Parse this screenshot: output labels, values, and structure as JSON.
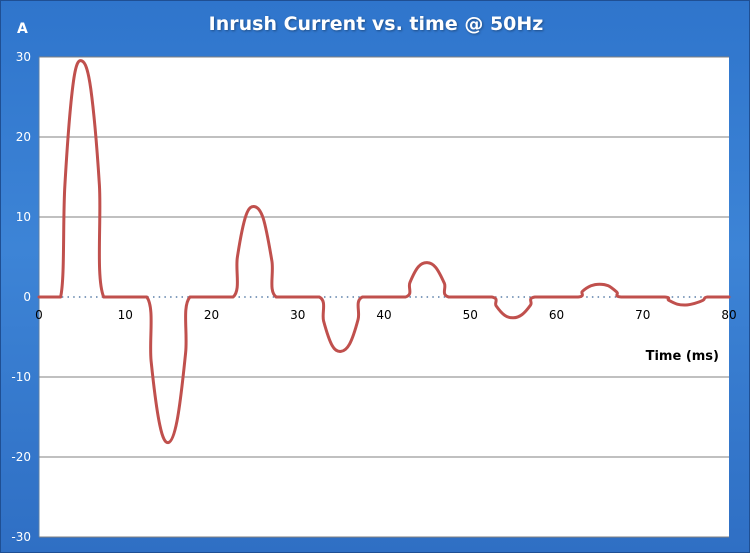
{
  "chart_data": {
    "type": "line",
    "title": "Inrush Current vs. time @ 50Hz",
    "ylabel": "A",
    "xlabel": "Time (ms)",
    "xlim": [
      0,
      80
    ],
    "ylim": [
      -30,
      30
    ],
    "x_ticks": [
      0,
      10,
      20,
      30,
      40,
      50,
      60,
      70,
      80
    ],
    "y_ticks": [
      30,
      20,
      10,
      0,
      -10,
      -20,
      -30
    ],
    "grid": "horizontal",
    "legend": "none",
    "series": [
      {
        "color": "#c0504d",
        "points": [
          [
            0,
            0
          ],
          [
            2.5,
            0
          ],
          [
            3.0,
            14
          ],
          [
            4.0,
            27
          ],
          [
            5.0,
            29.5
          ],
          [
            6.0,
            26
          ],
          [
            7.0,
            14
          ],
          [
            7.5,
            0
          ],
          [
            12.5,
            0
          ],
          [
            13.0,
            -8
          ],
          [
            14.0,
            -16
          ],
          [
            15.0,
            -18.2
          ],
          [
            16.0,
            -15.5
          ],
          [
            17.0,
            -7
          ],
          [
            17.5,
            0
          ],
          [
            22.5,
            0
          ],
          [
            23.0,
            5
          ],
          [
            24.0,
            10.2
          ],
          [
            25.0,
            11.3
          ],
          [
            26.0,
            9.8
          ],
          [
            27.0,
            4.5
          ],
          [
            27.5,
            0
          ],
          [
            32.5,
            0
          ],
          [
            33.0,
            -3
          ],
          [
            34.0,
            -6.1
          ],
          [
            35.0,
            -6.8
          ],
          [
            36.0,
            -5.9
          ],
          [
            37.0,
            -2.8
          ],
          [
            37.5,
            0
          ],
          [
            42.5,
            0
          ],
          [
            43.0,
            1.8
          ],
          [
            44.0,
            3.8
          ],
          [
            45.0,
            4.3
          ],
          [
            46.0,
            3.7
          ],
          [
            47.0,
            1.7
          ],
          [
            47.5,
            0
          ],
          [
            52.5,
            0
          ],
          [
            53.0,
            -1.1
          ],
          [
            54.0,
            -2.3
          ],
          [
            55.0,
            -2.6
          ],
          [
            56.0,
            -2.2
          ],
          [
            57.0,
            -1.0
          ],
          [
            57.5,
            0
          ],
          [
            62.5,
            0
          ],
          [
            63.0,
            0.7
          ],
          [
            64.0,
            1.4
          ],
          [
            65.0,
            1.6
          ],
          [
            66.0,
            1.4
          ],
          [
            67.0,
            0.6
          ],
          [
            67.5,
            0
          ],
          [
            72.5,
            0
          ],
          [
            73.0,
            -0.4
          ],
          [
            74.0,
            -0.9
          ],
          [
            75.0,
            -1.0
          ],
          [
            76.0,
            -0.8
          ],
          [
            77.0,
            -0.4
          ],
          [
            77.5,
            0
          ],
          [
            80,
            0
          ]
        ]
      }
    ]
  },
  "colors": {
    "background": "#3a80d2",
    "plot_area": "#ffffff",
    "gridline": "#808080",
    "axis": "#5a7fa8",
    "line": "#c0504d",
    "text_light": "#ffffff",
    "text_dark": "#000000"
  }
}
